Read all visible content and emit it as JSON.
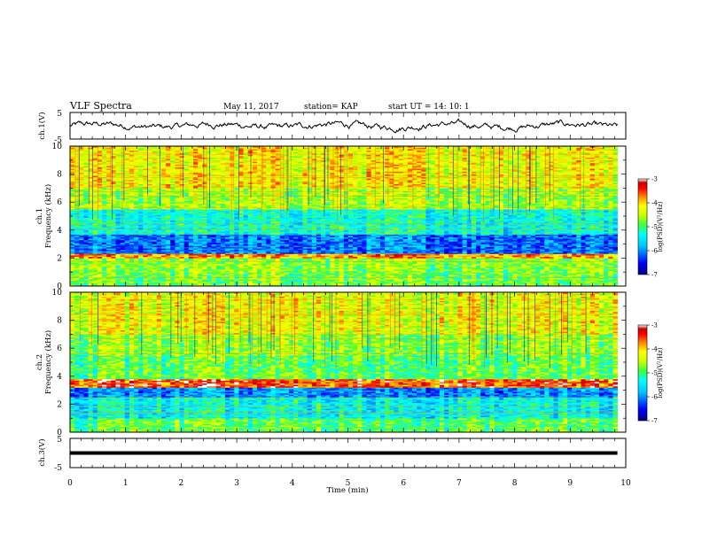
{
  "header": {
    "title": "VLF Spectra",
    "date": "May 11, 2017",
    "station": "station= KAP",
    "start": "start  UT =   14: 10: 1"
  },
  "colors": {
    "spectrum_scale": [
      "#00007f",
      "#0000ff",
      "#00c8ff",
      "#00ffff",
      "#40ff40",
      "#c8ff00",
      "#ffff00",
      "#ff8000",
      "#ff0000",
      "#c80000",
      "#ffffff"
    ],
    "trace": "#000000"
  },
  "chart_data": [
    {
      "name": "ch1-waveform",
      "type": "line",
      "ylabel": "ch.1(V)",
      "ylim": [
        -5,
        5
      ],
      "ytick_labels": [
        "5",
        "-5"
      ],
      "xlim": [
        0,
        10
      ],
      "x_extent_min": 9.85,
      "description_of_values": "noisy voltage trace centred near 0 V, amplitude ~±2 V",
      "y_mean": 0,
      "y_amplitude": 2
    },
    {
      "name": "ch1-spectrogram",
      "type": "heatmap",
      "ylabel_top": "ch.1",
      "ylabel": "Frequency (kHz)",
      "ylim": [
        0,
        10
      ],
      "ytick_labels": [
        "0",
        "2",
        "4",
        "6",
        "8",
        "10"
      ],
      "xlim": [
        0,
        10
      ],
      "colorbar": {
        "label": "log(PSD)(V²/Hz)",
        "range": [
          -7,
          -3
        ],
        "tick_labels": [
          "-3",
          "-4",
          "-5",
          "-6",
          "-7"
        ]
      },
      "bands": [
        {
          "freq_range_khz": [
            0,
            1
          ],
          "level": -4.8
        },
        {
          "freq_range_khz": [
            1,
            2
          ],
          "level": -4.7
        },
        {
          "freq_range_khz": [
            2,
            2.3
          ],
          "level": -3.8
        },
        {
          "freq_range_khz": [
            2.3,
            3.7
          ],
          "level": -6.1
        },
        {
          "freq_range_khz": [
            3.7,
            5.5
          ],
          "level": -5.3
        },
        {
          "freq_range_khz": [
            5.5,
            7
          ],
          "level": -4.6
        },
        {
          "freq_range_khz": [
            7,
            10
          ],
          "level": -4.2
        }
      ]
    },
    {
      "name": "ch2-spectrogram",
      "type": "heatmap",
      "ylabel_top": "ch.2",
      "ylabel": "Frequency (kHz)",
      "ylim": [
        0,
        10
      ],
      "ytick_labels": [
        "0",
        "2",
        "4",
        "6",
        "8",
        "10"
      ],
      "xlim": [
        0,
        10
      ],
      "colorbar": {
        "label": "log(PSD)(V²/Hz)",
        "range": [
          -7,
          -3
        ],
        "tick_labels": [
          "-3",
          "-4",
          "-5",
          "-6",
          "-7"
        ]
      },
      "bands": [
        {
          "freq_range_khz": [
            0,
            1
          ],
          "level": -4.9
        },
        {
          "freq_range_khz": [
            1,
            2.5
          ],
          "level": -5.4
        },
        {
          "freq_range_khz": [
            2.5,
            3.2
          ],
          "level": -6.0
        },
        {
          "freq_range_khz": [
            3.2,
            3.8
          ],
          "level": -3.5
        },
        {
          "freq_range_khz": [
            3.8,
            5.5
          ],
          "level": -4.9
        },
        {
          "freq_range_khz": [
            5.5,
            7
          ],
          "level": -4.7
        },
        {
          "freq_range_khz": [
            7,
            10
          ],
          "level": -4.3
        }
      ]
    },
    {
      "name": "ch3-waveform",
      "type": "line",
      "ylabel": "ch.3(V)",
      "ylim": [
        -5,
        5
      ],
      "ytick_labels": [
        "5",
        "-5"
      ],
      "xlim": [
        0,
        10
      ],
      "x_extent_min": 9.85,
      "y_constant": 0,
      "xlabel": "Time (min)",
      "xtick_labels": [
        "0",
        "1",
        "2",
        "3",
        "4",
        "5",
        "6",
        "7",
        "8",
        "9",
        "10"
      ]
    }
  ]
}
